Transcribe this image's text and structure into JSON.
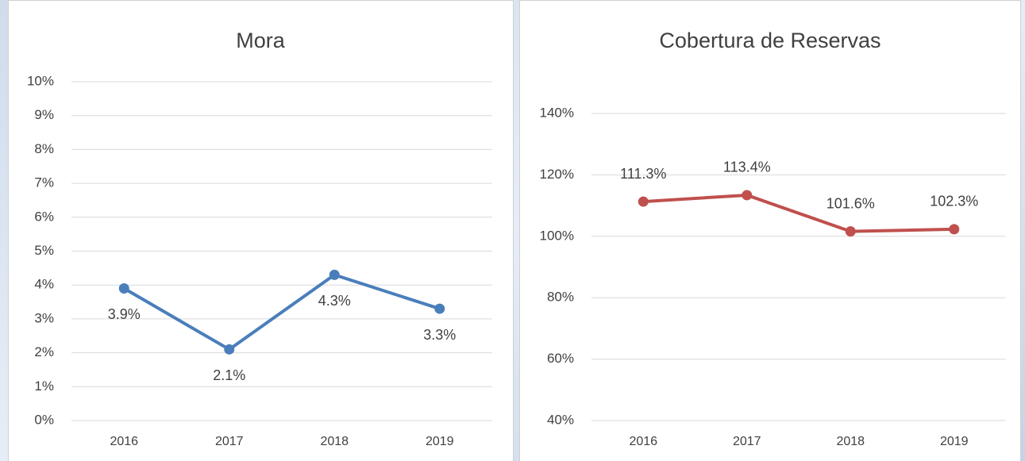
{
  "chart_data": [
    {
      "type": "line",
      "title": "Mora",
      "categories": [
        "2016",
        "2017",
        "2018",
        "2019"
      ],
      "series": [
        {
          "name": "Mora",
          "color": "#4a7ebb",
          "values": [
            3.9,
            2.1,
            4.3,
            3.3
          ],
          "value_labels": [
            "3.9%",
            "2.1%",
            "4.3%",
            "3.3%"
          ]
        }
      ],
      "ylim": [
        0,
        10
      ],
      "yticks": [
        {
          "value": 0,
          "label": "0%"
        },
        {
          "value": 1,
          "label": "1%"
        },
        {
          "value": 2,
          "label": "2%"
        },
        {
          "value": 3,
          "label": "3%"
        },
        {
          "value": 4,
          "label": "4%"
        },
        {
          "value": 5,
          "label": "5%"
        },
        {
          "value": 6,
          "label": "6%"
        },
        {
          "value": 7,
          "label": "7%"
        },
        {
          "value": 8,
          "label": "8%"
        },
        {
          "value": 9,
          "label": "9%"
        },
        {
          "value": 10,
          "label": "10%"
        }
      ],
      "grid": true,
      "label_position": "below"
    },
    {
      "type": "line",
      "title": "Cobertura de Reservas",
      "categories": [
        "2016",
        "2017",
        "2018",
        "2019"
      ],
      "series": [
        {
          "name": "Cobertura de Reservas",
          "color": "#c0504d",
          "values": [
            111.3,
            113.4,
            101.6,
            102.3
          ],
          "value_labels": [
            "111.3%",
            "113.4%",
            "101.6%",
            "102.3%"
          ]
        }
      ],
      "ylim": [
        40,
        140
      ],
      "yticks": [
        {
          "value": 40,
          "label": "40%"
        },
        {
          "value": 60,
          "label": "60%"
        },
        {
          "value": 80,
          "label": "80%"
        },
        {
          "value": 100,
          "label": "100%"
        },
        {
          "value": 120,
          "label": "120%"
        },
        {
          "value": 140,
          "label": "140%"
        }
      ],
      "grid": true,
      "label_position": "above"
    }
  ]
}
